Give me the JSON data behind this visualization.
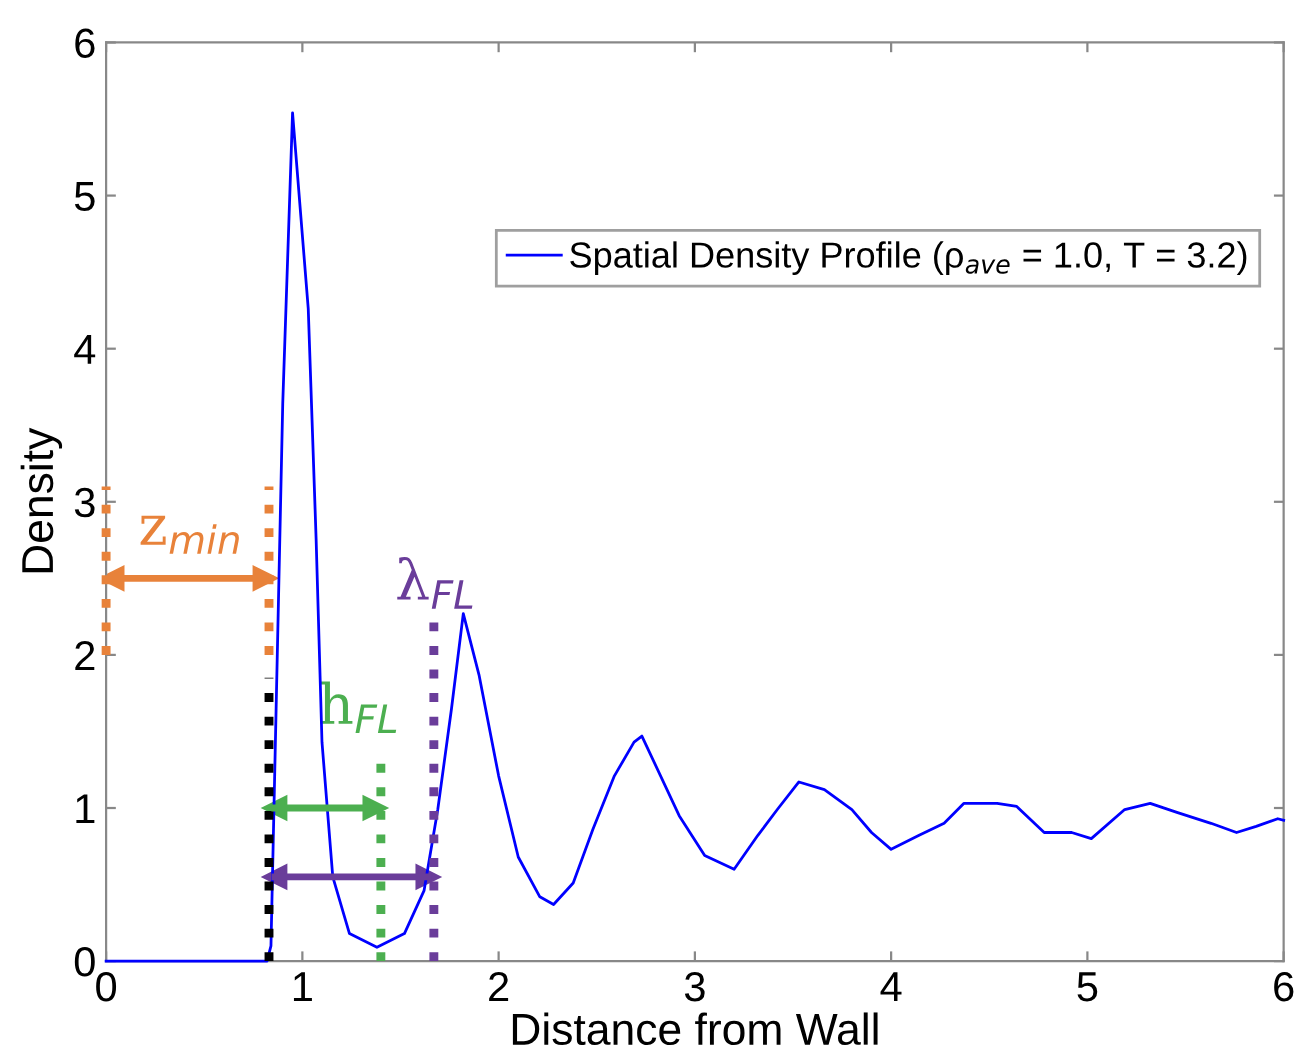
{
  "chart_data": {
    "type": "line",
    "xlabel": "Distance from Wall",
    "ylabel": "Density",
    "xlim": [
      0,
      6
    ],
    "ylim": [
      0,
      6
    ],
    "xticks": [
      0,
      1,
      2,
      3,
      4,
      5,
      6
    ],
    "yticks": [
      0,
      1,
      2,
      3,
      4,
      5,
      6
    ],
    "grid": false,
    "legend": "top right",
    "marker": "none",
    "line_style": "solid",
    "series": [
      {
        "name": "Spatial Density Profile (ρ$_{ave}$ = 1.0, T = 3.2)",
        "color": "#0000ff",
        "x": [
          0,
          0.2,
          0.4,
          0.6,
          0.82,
          0.84,
          0.9,
          0.95,
          1.03,
          1.07,
          1.1,
          1.155,
          1.24,
          1.38,
          1.52,
          1.62,
          1.69,
          1.76,
          1.82,
          1.9,
          2.0,
          2.1,
          2.21,
          2.28,
          2.38,
          2.48,
          2.59,
          2.69,
          2.73,
          2.92,
          3.05,
          3.2,
          3.32,
          3.42,
          3.53,
          3.66,
          3.8,
          3.9,
          4.0,
          4.14,
          4.27,
          4.37,
          4.54,
          4.64,
          4.78,
          4.92,
          5.02,
          5.19,
          5.32,
          5.46,
          5.63,
          5.76,
          5.86,
          5.97,
          6.0
        ],
        "values": [
          0,
          0,
          0,
          0,
          0,
          0.1,
          3.64,
          5.54,
          4.26,
          2.76,
          1.43,
          0.55,
          0.18,
          0.09,
          0.18,
          0.46,
          0.99,
          1.65,
          2.27,
          1.87,
          1.21,
          0.68,
          0.42,
          0.37,
          0.51,
          0.86,
          1.21,
          1.43,
          1.47,
          0.95,
          0.69,
          0.6,
          0.82,
          0.99,
          1.17,
          1.12,
          0.99,
          0.84,
          0.73,
          0.82,
          0.9,
          1.03,
          1.03,
          1.01,
          0.84,
          0.84,
          0.8,
          0.99,
          1.03,
          0.97,
          0.9,
          0.84,
          0.88,
          0.93,
          0.92
        ]
      },
      {
        "color": "#e8823a",
        "line_style": "dotted",
        "x": [
          0,
          0
        ],
        "values": [
          2,
          3.1
        ]
      },
      {
        "color": "#e8823a",
        "line_style": "dotted",
        "x": [
          0.83,
          0.83
        ],
        "values": [
          2,
          3.1
        ]
      },
      {
        "color": "#000000",
        "line_style": "dotted",
        "x": [
          0.83,
          0.83
        ],
        "values": [
          0,
          1.85
        ]
      },
      {
        "color": "#4caf50",
        "line_style": "dotted",
        "x": [
          1.4,
          1.4
        ],
        "values": [
          0,
          1.35
        ]
      },
      {
        "color": "#6a3d9a",
        "line_style": "dotted",
        "x": [
          1.67,
          1.67
        ],
        "values": [
          0,
          2.3
        ]
      },
      {
        "color": "#e8823a",
        "marker": "triangle",
        "x": [
          0.03,
          0.81
        ],
        "values": [
          2.5,
          2.5
        ]
      },
      {
        "color": "#4caf50",
        "marker": "triangle",
        "x": [
          0.86,
          1.37
        ],
        "values": [
          1.0,
          1.0
        ]
      },
      {
        "color": "#6a3d9a",
        "marker": "triangle",
        "x": [
          0.86,
          1.64
        ],
        "values": [
          0.55,
          0.55
        ]
      }
    ],
    "annotations": [
      "z$_{min}$",
      "h$_{FL}$",
      "λ$_{FL}$"
    ]
  }
}
